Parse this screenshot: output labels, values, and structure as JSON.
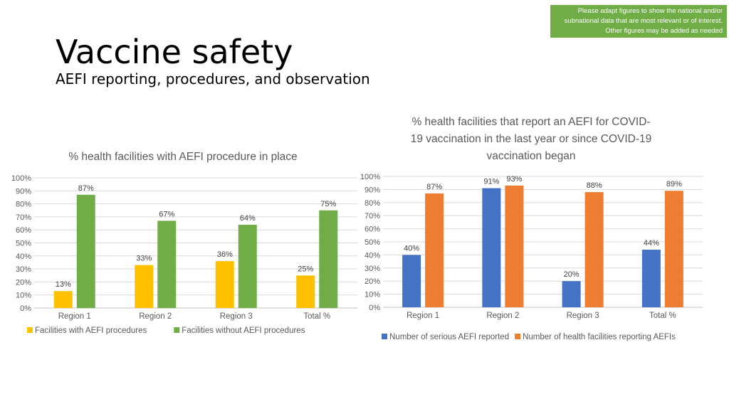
{
  "slide": {
    "title": "Vaccine safety",
    "subtitle": "AEFI reporting, procedures, and observation",
    "note": "Please adapt figures to show the national and/or subnational data that are most relevant or of interest. Other figures may be added as needed"
  },
  "colors": {
    "note_bg": "#70ad47",
    "yellow": "#ffc000",
    "green": "#70ad47",
    "blue": "#4472c4",
    "orange": "#ed7d31"
  },
  "chart_data": [
    {
      "type": "bar",
      "title": "% health facilities with AEFI procedure in place",
      "categories": [
        "Region 1",
        "Region 2",
        "Region 3",
        "Total %"
      ],
      "series": [
        {
          "name": "Facilities with AEFI procedures",
          "values": [
            13,
            33,
            36,
            25
          ],
          "color": "#ffc000"
        },
        {
          "name": "Facilities without AEFI procedures",
          "values": [
            87,
            67,
            64,
            75
          ],
          "color": "#70ad47"
        }
      ],
      "ylim": [
        0,
        100
      ],
      "ytick_step": 10,
      "value_suffix": "%",
      "grid": true,
      "legend": "bottom"
    },
    {
      "type": "bar",
      "title": "% health facilities that report an AEFI for COVID-19 vaccination in the last year or since COVID-19 vaccination began",
      "title_lines": [
        "% health facilities that report an AEFI for COVID-",
        "19 vaccination in the last year or since COVID-19",
        "vaccination began"
      ],
      "categories": [
        "Region 1",
        "Region 2",
        "Region 3",
        "Total %"
      ],
      "series": [
        {
          "name": "Number of serious AEFI reported",
          "values": [
            40,
            91,
            20,
            44
          ],
          "color": "#4472c4"
        },
        {
          "name": "Number of health facilities reporting AEFIs",
          "values": [
            87,
            93,
            88,
            89
          ],
          "color": "#ed7d31"
        }
      ],
      "ylim": [
        0,
        100
      ],
      "ytick_step": 10,
      "value_suffix": "%",
      "grid": true,
      "legend": "bottom"
    }
  ]
}
